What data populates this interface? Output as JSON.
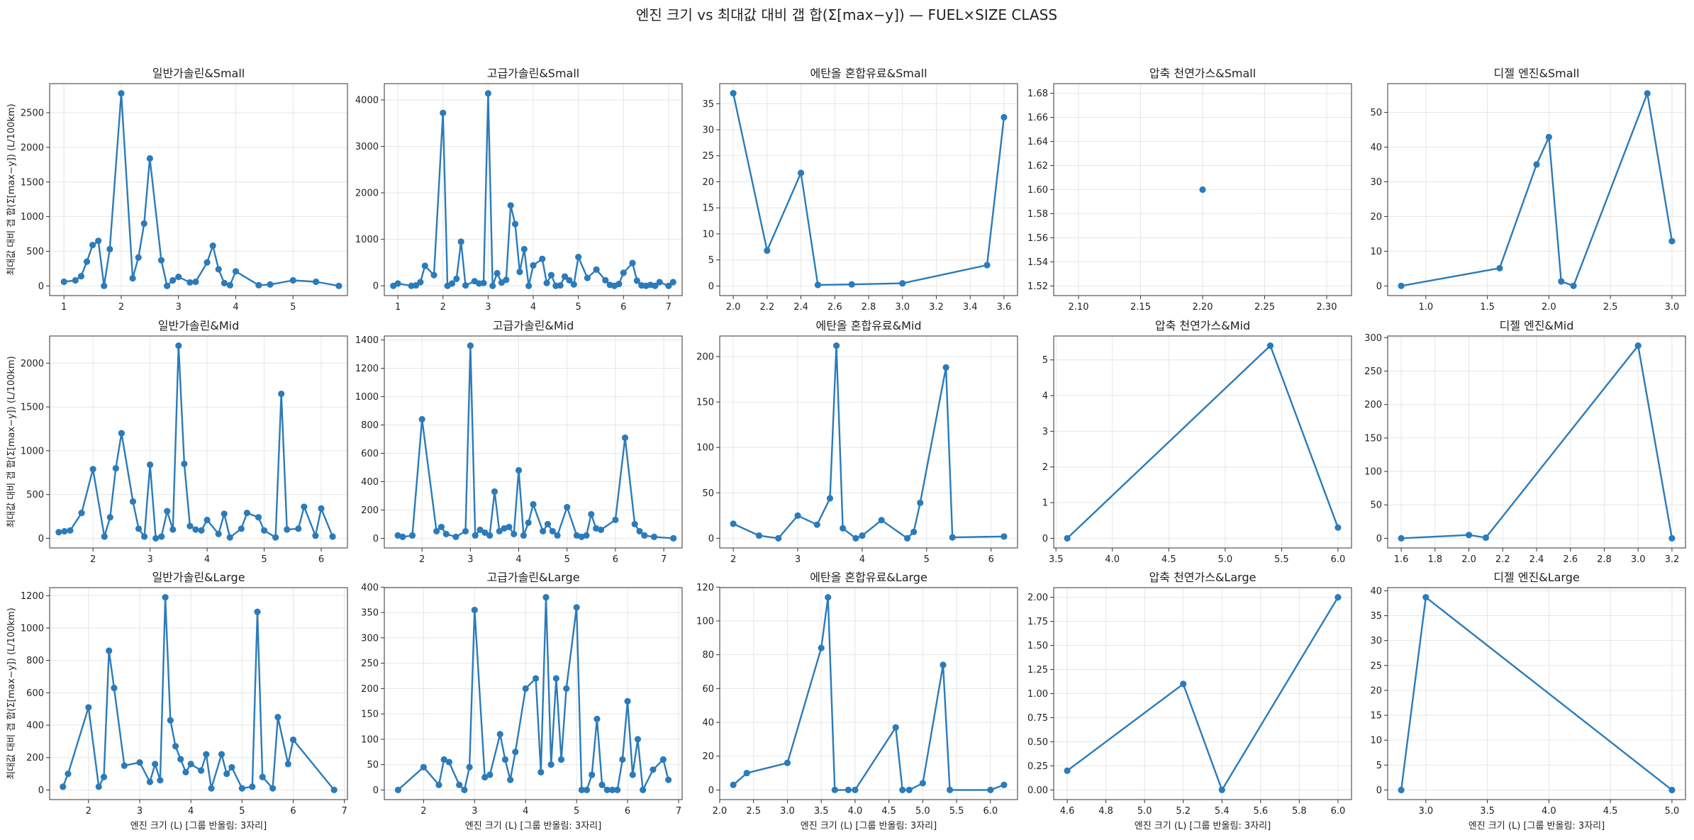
{
  "suptitle": "엔진 크기 vs 최대값 대비 갭 합(Σ[max−y]) — FUEL×SIZE CLASS",
  "colors": {
    "line": "#2b7bba",
    "grid": "#e6e6e6",
    "axis": "#333333"
  },
  "shared_xlabel": "엔진 크기 (L)  [그룹 반올림: 3자리]",
  "shared_ylabel": "최대값 대비 갭 합(Σ[max−y]) (L/100km)",
  "chart_data": [
    {
      "type": "line",
      "title": "일반가솔린&Small",
      "ylabel": "최대값 대비 갭 합(Σ[max−y]) (L/100km)",
      "xlabel": "",
      "xlim": [
        0.75,
        5.95
      ],
      "ylim": [
        -140,
        2920
      ],
      "xticks": [
        1,
        2,
        3,
        4,
        5
      ],
      "yticks": [
        0,
        500,
        1000,
        1500,
        2000,
        2500
      ],
      "x": [
        1.0,
        1.2,
        1.3,
        1.4,
        1.5,
        1.6,
        1.7,
        1.8,
        2.0,
        2.2,
        2.3,
        2.4,
        2.5,
        2.7,
        2.8,
        2.9,
        3.0,
        3.2,
        3.3,
        3.5,
        3.6,
        3.7,
        3.8,
        3.9,
        4.0,
        4.4,
        4.6,
        5.0,
        5.4,
        5.8
      ],
      "y": [
        60,
        80,
        140,
        350,
        590,
        650,
        0,
        530,
        2780,
        110,
        410,
        900,
        1840,
        370,
        0,
        80,
        130,
        50,
        60,
        340,
        580,
        240,
        40,
        10,
        210,
        10,
        20,
        80,
        60,
        0
      ]
    },
    {
      "type": "line",
      "title": "고급가솔린&Small",
      "ylabel": "",
      "xlabel": "",
      "xlim": [
        0.7,
        7.3
      ],
      "ylim": [
        -210,
        4350
      ],
      "xticks": [
        1,
        2,
        3,
        4,
        5,
        6,
        7
      ],
      "yticks": [
        0,
        1000,
        2000,
        3000,
        4000
      ],
      "x": [
        0.9,
        1.0,
        1.3,
        1.4,
        1.5,
        1.6,
        1.8,
        2.0,
        2.1,
        2.2,
        2.3,
        2.4,
        2.5,
        2.7,
        2.8,
        2.9,
        3.0,
        3.1,
        3.2,
        3.3,
        3.4,
        3.5,
        3.6,
        3.7,
        3.8,
        3.9,
        4.0,
        4.2,
        4.3,
        4.4,
        4.5,
        4.6,
        4.7,
        4.8,
        4.9,
        5.0,
        5.2,
        5.4,
        5.6,
        5.7,
        5.8,
        5.9,
        6.0,
        6.2,
        6.3,
        6.4,
        6.5,
        6.6,
        6.7,
        6.8,
        7.0,
        7.1
      ],
      "y": [
        0,
        50,
        0,
        10,
        80,
        430,
        230,
        3720,
        0,
        50,
        150,
        950,
        10,
        100,
        50,
        60,
        4140,
        0,
        270,
        70,
        130,
        1730,
        1330,
        300,
        790,
        0,
        440,
        580,
        60,
        230,
        0,
        10,
        200,
        120,
        30,
        620,
        170,
        350,
        120,
        20,
        0,
        40,
        280,
        490,
        110,
        10,
        0,
        20,
        0,
        80,
        0,
        80
      ]
    },
    {
      "type": "line",
      "title": "에탄올 혼합유료&Small",
      "ylabel": "",
      "xlabel": "",
      "xlim": [
        1.92,
        3.68
      ],
      "ylim": [
        -1.85,
        38.85
      ],
      "xticks": [
        2.0,
        2.2,
        2.4,
        2.6,
        2.8,
        3.0,
        3.2,
        3.4,
        3.6
      ],
      "yticks": [
        0,
        5,
        10,
        15,
        20,
        25,
        30,
        35
      ],
      "x": [
        2.0,
        2.2,
        2.4,
        2.5,
        2.7,
        3.0,
        3.5,
        3.6
      ],
      "y": [
        37.0,
        6.8,
        21.7,
        0.2,
        0.3,
        0.5,
        4.0,
        32.4
      ]
    },
    {
      "type": "line",
      "title": "압축 천연가스&Small",
      "ylabel": "",
      "xlabel": "",
      "xlim": [
        2.08,
        2.32
      ],
      "ylim": [
        1.512,
        1.688
      ],
      "xticks": [
        2.1,
        2.15,
        2.2,
        2.25,
        2.3
      ],
      "yticks": [
        1.52,
        1.54,
        1.56,
        1.58,
        1.6,
        1.62,
        1.64,
        1.66,
        1.68
      ],
      "x": [
        2.2
      ],
      "y": [
        1.6
      ]
    },
    {
      "type": "line",
      "title": "디젤 엔진&Small",
      "ylabel": "",
      "xlabel": "",
      "xlim": [
        0.69,
        3.11
      ],
      "ylim": [
        -2.8,
        58.3
      ],
      "xticks": [
        1.0,
        1.5,
        2.0,
        2.5,
        3.0
      ],
      "yticks": [
        0,
        10,
        20,
        30,
        40,
        50
      ],
      "x": [
        0.8,
        1.6,
        1.9,
        2.0,
        2.1,
        2.2,
        2.8,
        3.0
      ],
      "y": [
        0,
        5.1,
        35.0,
        42.9,
        1.3,
        0,
        55.5,
        12.9
      ]
    },
    {
      "type": "line",
      "title": "일반가솔린&Mid",
      "ylabel": "최대값 대비 갭 합(Σ[max−y]) (L/100km)",
      "xlabel": "",
      "xlim": [
        1.24,
        6.46
      ],
      "ylim": [
        -110,
        2310
      ],
      "xticks": [
        2,
        3,
        4,
        5,
        6
      ],
      "yticks": [
        0,
        500,
        1000,
        1500,
        2000
      ],
      "x": [
        1.4,
        1.5,
        1.6,
        1.8,
        2.0,
        2.2,
        2.3,
        2.4,
        2.5,
        2.7,
        2.8,
        2.9,
        3.0,
        3.1,
        3.2,
        3.3,
        3.4,
        3.5,
        3.6,
        3.7,
        3.8,
        3.9,
        4.0,
        4.2,
        4.3,
        4.4,
        4.6,
        4.7,
        4.9,
        5.0,
        5.2,
        5.3,
        5.4,
        5.6,
        5.7,
        5.9,
        6.0,
        6.2
      ],
      "y": [
        70,
        80,
        90,
        290,
        790,
        20,
        240,
        800,
        1200,
        420,
        110,
        20,
        840,
        0,
        20,
        310,
        100,
        2200,
        850,
        140,
        100,
        90,
        210,
        50,
        280,
        10,
        110,
        290,
        240,
        90,
        10,
        1650,
        100,
        110,
        360,
        30,
        340,
        20
      ]
    },
    {
      "type": "line",
      "title": "고급가솔린&Mid",
      "ylabel": "",
      "xlabel": "",
      "xlim": [
        1.22,
        7.38
      ],
      "ylim": [
        -68,
        1428
      ],
      "xticks": [
        2,
        3,
        4,
        5,
        6,
        7
      ],
      "yticks": [
        0,
        200,
        400,
        600,
        800,
        1000,
        1200,
        1400
      ],
      "x": [
        1.5,
        1.6,
        1.8,
        2.0,
        2.3,
        2.4,
        2.5,
        2.7,
        2.9,
        3.0,
        3.1,
        3.2,
        3.3,
        3.4,
        3.5,
        3.6,
        3.7,
        3.8,
        3.9,
        4.0,
        4.1,
        4.2,
        4.3,
        4.5,
        4.6,
        4.7,
        4.8,
        5.0,
        5.2,
        5.3,
        5.4,
        5.5,
        5.6,
        5.7,
        6.0,
        6.2,
        6.4,
        6.5,
        6.6,
        6.8,
        7.2
      ],
      "y": [
        20,
        10,
        20,
        840,
        50,
        80,
        30,
        10,
        50,
        1360,
        20,
        60,
        40,
        20,
        330,
        50,
        70,
        80,
        30,
        480,
        20,
        110,
        240,
        50,
        100,
        50,
        20,
        220,
        20,
        10,
        20,
        170,
        70,
        60,
        130,
        710,
        100,
        50,
        20,
        10,
        0
      ]
    },
    {
      "type": "line",
      "title": "에탄올 혼합유료&Mid",
      "ylabel": "",
      "xlabel": "",
      "xlim": [
        1.79,
        6.41
      ],
      "ylim": [
        -10.6,
        222.6
      ],
      "xticks": [
        2,
        3,
        4,
        5,
        6
      ],
      "yticks": [
        0,
        50,
        100,
        150,
        200
      ],
      "x": [
        2.0,
        2.4,
        2.7,
        3.0,
        3.3,
        3.5,
        3.6,
        3.7,
        3.9,
        4.0,
        4.3,
        4.7,
        4.8,
        4.9,
        5.3,
        5.4,
        6.2
      ],
      "y": [
        16,
        3,
        0,
        25,
        15,
        44,
        212,
        11,
        0,
        3,
        20,
        0,
        7,
        39,
        188,
        1,
        2
      ]
    },
    {
      "type": "line",
      "title": "압축 천연가스&Mid",
      "ylabel": "",
      "xlabel": "",
      "xlim": [
        3.48,
        6.12
      ],
      "ylim": [
        -0.27,
        5.67
      ],
      "xticks": [
        3.5,
        4.0,
        4.5,
        5.0,
        5.5,
        6.0
      ],
      "yticks": [
        0,
        1,
        2,
        3,
        4,
        5
      ],
      "x": [
        3.6,
        5.4,
        6.0
      ],
      "y": [
        0,
        5.4,
        0.3
      ]
    },
    {
      "type": "line",
      "title": "디젤 엔진&Mid",
      "ylabel": "",
      "xlabel": "",
      "xlim": [
        1.52,
        3.28
      ],
      "ylim": [
        -14.4,
        302.4
      ],
      "xticks": [
        1.6,
        1.8,
        2.0,
        2.2,
        2.4,
        2.6,
        2.8,
        3.0,
        3.2
      ],
      "yticks": [
        0,
        50,
        100,
        150,
        200,
        250,
        300
      ],
      "x": [
        1.6,
        2.0,
        2.1,
        3.0,
        3.2
      ],
      "y": [
        0,
        5,
        1,
        288,
        0
      ]
    },
    {
      "type": "line",
      "title": "일반가솔린&Large",
      "ylabel": "최대값 대비 갭 합(Σ[max−y]) (L/100km)",
      "xlabel": "엔진 크기 (L)  [그룹 반올림: 3자리]",
      "xlim": [
        1.24,
        7.06
      ],
      "ylim": [
        -59.5,
        1249.5
      ],
      "xticks": [
        2,
        3,
        4,
        5,
        6,
        7
      ],
      "yticks": [
        0,
        200,
        400,
        600,
        800,
        1000,
        1200
      ],
      "x": [
        1.5,
        1.6,
        2.0,
        2.2,
        2.3,
        2.4,
        2.5,
        2.7,
        3.0,
        3.2,
        3.3,
        3.4,
        3.5,
        3.6,
        3.7,
        3.8,
        3.9,
        4.0,
        4.2,
        4.3,
        4.4,
        4.6,
        4.7,
        4.8,
        5.0,
        5.2,
        5.3,
        5.4,
        5.6,
        5.7,
        5.9,
        6.0,
        6.8
      ],
      "y": [
        20,
        100,
        510,
        20,
        80,
        860,
        630,
        150,
        170,
        50,
        160,
        60,
        1190,
        430,
        270,
        190,
        110,
        160,
        120,
        220,
        10,
        220,
        100,
        140,
        10,
        20,
        1100,
        80,
        10,
        450,
        160,
        310,
        0
      ]
    },
    {
      "type": "line",
      "title": "고급가솔린&Large",
      "ylabel": "",
      "xlabel": "엔진 크기 (L)  [그룹 반올림: 3자리]",
      "xlim": [
        1.23,
        7.07
      ],
      "ylim": [
        -19,
        399
      ],
      "xticks": [
        2,
        3,
        4,
        5,
        6,
        7
      ],
      "yticks": [
        0,
        50,
        100,
        150,
        200,
        250,
        300,
        350,
        400
      ],
      "x": [
        1.5,
        2.0,
        2.3,
        2.4,
        2.5,
        2.7,
        2.8,
        2.9,
        3.0,
        3.2,
        3.3,
        3.5,
        3.6,
        3.7,
        3.8,
        4.0,
        4.2,
        4.3,
        4.4,
        4.5,
        4.6,
        4.7,
        4.8,
        5.0,
        5.1,
        5.2,
        5.3,
        5.4,
        5.5,
        5.6,
        5.7,
        5.8,
        5.9,
        6.0,
        6.1,
        6.2,
        6.3,
        6.5,
        6.7,
        6.8
      ],
      "y": [
        0,
        45,
        10,
        60,
        55,
        10,
        0,
        45,
        355,
        25,
        30,
        110,
        60,
        20,
        75,
        200,
        220,
        35,
        380,
        50,
        220,
        60,
        200,
        360,
        0,
        0,
        30,
        140,
        10,
        0,
        0,
        0,
        60,
        175,
        30,
        100,
        0,
        40,
        60,
        20
      ]
    },
    {
      "type": "line",
      "title": "에탄올 혼합유료&Large",
      "ylabel": "",
      "xlabel": "엔진 크기 (L)  [그룹 반올림: 3자리]",
      "xlim": [
        2.0,
        6.4
      ],
      "ylim": [
        -5.7,
        119.7
      ],
      "xticks": [
        2.0,
        2.5,
        3.0,
        3.5,
        4.0,
        4.5,
        5.0,
        5.5,
        6.0
      ],
      "yticks": [
        0,
        20,
        40,
        60,
        80,
        100,
        120
      ],
      "x": [
        2.2,
        2.4,
        3.0,
        3.5,
        3.6,
        3.7,
        3.9,
        4.0,
        4.6,
        4.7,
        4.8,
        5.0,
        5.3,
        5.4,
        6.0,
        6.2
      ],
      "y": [
        3,
        10,
        16,
        84,
        114,
        0,
        0,
        0,
        37,
        0,
        0,
        4,
        74,
        0,
        0,
        3
      ]
    },
    {
      "type": "line",
      "title": "압축 천연가스&Large",
      "ylabel": "",
      "xlabel": "엔진 크기 (L)  [그룹 반올림: 3자리]",
      "xlim": [
        4.53,
        6.07
      ],
      "ylim": [
        -0.1,
        2.1
      ],
      "xticks": [
        4.6,
        4.8,
        5.0,
        5.2,
        5.4,
        5.6,
        5.8,
        6.0
      ],
      "yticks": [
        0,
        0.25,
        0.5,
        0.75,
        1.0,
        1.25,
        1.5,
        1.75,
        2.0
      ],
      "x": [
        4.6,
        5.2,
        5.4,
        6.0
      ],
      "y": [
        0.2,
        1.1,
        0,
        2.0
      ]
    },
    {
      "type": "line",
      "title": "디젤 엔진&Large",
      "ylabel": "",
      "xlabel": "엔진 크기 (L)  [그룹 반올림: 3자리]",
      "xlim": [
        2.69,
        5.11
      ],
      "ylim": [
        -1.93,
        40.63
      ],
      "xticks": [
        3.0,
        3.5,
        4.0,
        4.5,
        5.0
      ],
      "yticks": [
        0,
        5,
        10,
        15,
        20,
        25,
        30,
        35,
        40
      ],
      "x": [
        2.8,
        3.0,
        5.0
      ],
      "y": [
        0,
        38.7,
        0
      ]
    }
  ]
}
